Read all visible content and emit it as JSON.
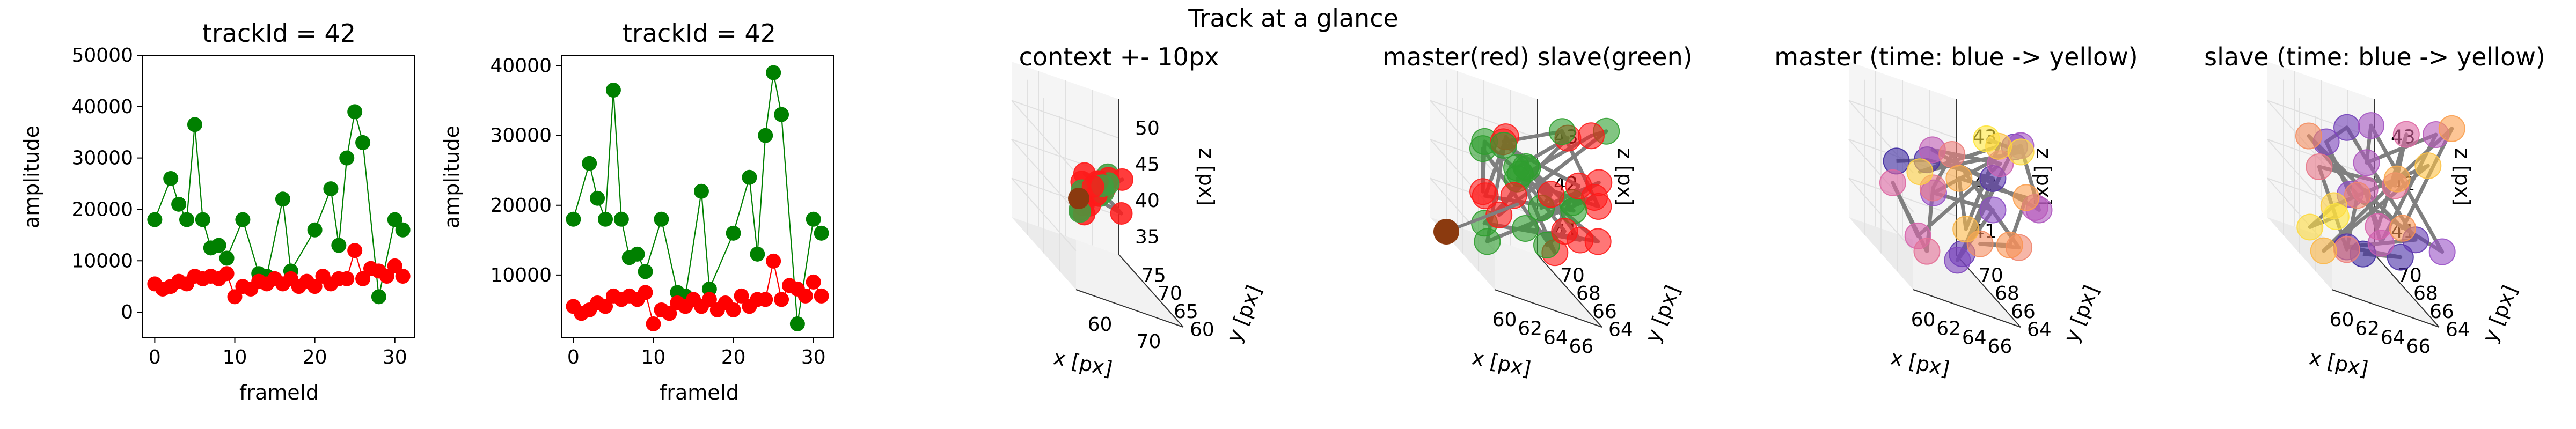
{
  "suptitle": "Track at a glance",
  "colors": {
    "master": "#ff0000",
    "slave": "#008000",
    "track_line": "#7f7f7f",
    "pane": "#f2f2f2",
    "grid": "#e0e0e0",
    "first_point": "#8b3a0f"
  },
  "chart_data": [
    {
      "type": "line",
      "title": "trackId = 42",
      "xlabel": "frameId",
      "ylabel": "amplitude",
      "xlim": [
        -1.5,
        32.5
      ],
      "ylim": [
        -5000,
        50000
      ],
      "xticks": [
        0,
        10,
        20,
        30
      ],
      "yticks": [
        0,
        10000,
        20000,
        30000,
        40000,
        50000
      ],
      "x": [
        0,
        1,
        2,
        3,
        4,
        5,
        6,
        7,
        8,
        9,
        10,
        11,
        12,
        13,
        14,
        15,
        16,
        17,
        18,
        19,
        20,
        21,
        22,
        23,
        24,
        25,
        26,
        27,
        28,
        29,
        30,
        31
      ],
      "series": [
        {
          "key": "slave",
          "color": "#008000",
          "values": [
            18000,
            null,
            26000,
            21000,
            18000,
            36500,
            18000,
            12500,
            13000,
            10500,
            null,
            18000,
            null,
            7500,
            7000,
            null,
            22000,
            8000,
            null,
            null,
            16000,
            null,
            24000,
            13000,
            30000,
            39000,
            33000,
            null,
            3000,
            null,
            18000,
            16000
          ]
        },
        {
          "key": "master",
          "color": "#ff0000",
          "values": [
            5500,
            4500,
            5000,
            6000,
            5500,
            7000,
            6500,
            7000,
            6500,
            7500,
            3000,
            5000,
            4500,
            6000,
            5500,
            6500,
            5500,
            6500,
            5000,
            6000,
            5000,
            7000,
            5500,
            6500,
            6500,
            12000,
            6500,
            8500,
            8000,
            7000,
            9000,
            7000
          ]
        }
      ]
    },
    {
      "type": "line",
      "title": "trackId = 42",
      "xlabel": "frameId",
      "ylabel": "amplitude",
      "xlim": [
        -1.5,
        32.5
      ],
      "ylim": [
        1000,
        41500
      ],
      "xticks": [
        0,
        10,
        20,
        30
      ],
      "yticks": [
        10000,
        20000,
        30000,
        40000
      ],
      "x": [
        0,
        1,
        2,
        3,
        4,
        5,
        6,
        7,
        8,
        9,
        10,
        11,
        12,
        13,
        14,
        15,
        16,
        17,
        18,
        19,
        20,
        21,
        22,
        23,
        24,
        25,
        26,
        27,
        28,
        29,
        30,
        31
      ],
      "series": [
        {
          "key": "slave",
          "color": "#008000",
          "values": [
            18000,
            null,
            26000,
            21000,
            18000,
            36500,
            18000,
            12500,
            13000,
            10500,
            null,
            18000,
            null,
            7500,
            7000,
            null,
            22000,
            8000,
            null,
            null,
            16000,
            null,
            24000,
            13000,
            30000,
            39000,
            33000,
            null,
            3000,
            null,
            18000,
            16000
          ]
        },
        {
          "key": "master",
          "color": "#ff0000",
          "values": [
            5500,
            4500,
            5000,
            6000,
            5500,
            7000,
            6500,
            7000,
            6500,
            7500,
            3000,
            5000,
            4500,
            6000,
            5500,
            6500,
            5500,
            6500,
            5000,
            6000,
            5000,
            7000,
            5500,
            6500,
            6500,
            12000,
            6500,
            8500,
            8000,
            7000,
            9000,
            7000
          ]
        }
      ]
    },
    {
      "type": "scatter",
      "title": "context +- 10px",
      "xlabel": "x [px]",
      "ylabel": "y [px]",
      "zlabel": "z [px]",
      "xticks": [
        "60",
        "70"
      ],
      "yticks": [
        "60",
        "65",
        "70",
        "75"
      ],
      "zticks": [
        "35",
        "40",
        "45",
        "50"
      ]
    },
    {
      "type": "scatter",
      "title": "master(red) slave(green)",
      "xlabel": "x [px]",
      "ylabel": "y [px]",
      "zlabel": "z [px]",
      "xticks": [
        "60",
        "62",
        "64",
        "66"
      ],
      "yticks": [
        "64",
        "66",
        "68",
        "70"
      ],
      "zticks": [
        "41",
        "42",
        "43"
      ]
    },
    {
      "type": "scatter",
      "title": "master (time: blue -> yellow)",
      "xlabel": "x [px]",
      "ylabel": "y [px]",
      "zlabel": "z [px]",
      "xticks": [
        "60",
        "62",
        "64",
        "66"
      ],
      "yticks": [
        "64",
        "66",
        "68",
        "70"
      ],
      "zticks": [
        "41",
        "42",
        "43"
      ]
    },
    {
      "type": "scatter",
      "title": "slave (time: blue -> yellow)",
      "xlabel": "x [px]",
      "ylabel": "y [px]",
      "zlabel": "z [px]",
      "xticks": [
        "60",
        "62",
        "64",
        "66"
      ],
      "yticks": [
        "64",
        "66",
        "68",
        "70"
      ],
      "zticks": [
        "41",
        "42",
        "43"
      ]
    }
  ]
}
